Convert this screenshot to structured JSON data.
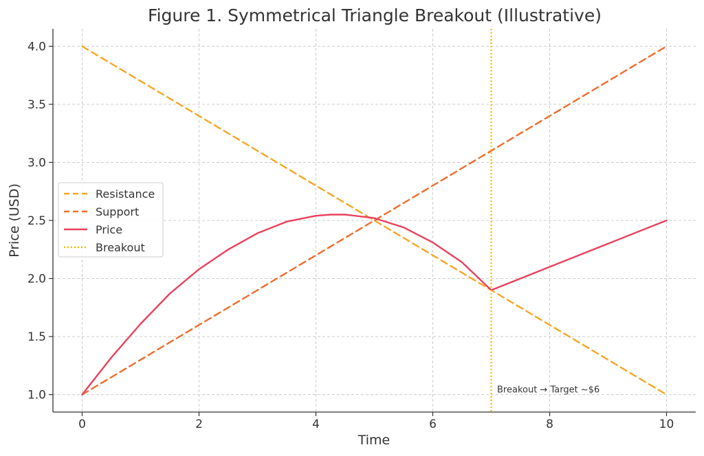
{
  "chart_data": {
    "type": "line",
    "title": "Figure 1. Symmetrical Triangle Breakout (Illustrative)",
    "xlabel": "Time",
    "ylabel": "Price (USD)",
    "xlim": [
      -0.5,
      10.5
    ],
    "ylim": [
      0.85,
      4.15
    ],
    "x_ticks": [
      0,
      2,
      4,
      6,
      8,
      10
    ],
    "x_tick_labels": [
      "0",
      "2",
      "4",
      "6",
      "8",
      "10"
    ],
    "y_ticks": [
      1.0,
      1.5,
      2.0,
      2.5,
      3.0,
      3.5,
      4.0
    ],
    "y_tick_labels": [
      "1.0",
      "1.5",
      "2.0",
      "2.5",
      "3.0",
      "3.5",
      "4.0"
    ],
    "grid": true,
    "legend_position": "center-left",
    "series": [
      {
        "name": "Resistance",
        "style": "dashed",
        "color": "#f5a623",
        "x": [
          0,
          10
        ],
        "y": [
          4.0,
          1.0
        ]
      },
      {
        "name": "Support",
        "style": "dashed",
        "color": "#ef6c2b",
        "x": [
          0,
          10
        ],
        "y": [
          1.0,
          4.0
        ]
      },
      {
        "name": "Price",
        "style": "solid",
        "color": "#e8405b",
        "x": [
          0,
          0.5,
          1,
          1.5,
          2,
          2.5,
          3,
          3.5,
          4,
          4.25,
          4.5,
          5,
          5.5,
          6,
          6.5,
          7,
          8,
          9,
          10
        ],
        "y": [
          1.0,
          1.32,
          1.61,
          1.87,
          2.08,
          2.25,
          2.39,
          2.49,
          2.54,
          2.55,
          2.55,
          2.52,
          2.44,
          2.31,
          2.14,
          1.9,
          2.1,
          2.3,
          2.5
        ]
      },
      {
        "name": "Breakout",
        "style": "dotted",
        "color": "#f5b700",
        "vline_x": 7
      }
    ],
    "annotations": [
      {
        "text": "Breakout → Target ~$6",
        "x": 7.1,
        "y": 1.02
      }
    ]
  }
}
